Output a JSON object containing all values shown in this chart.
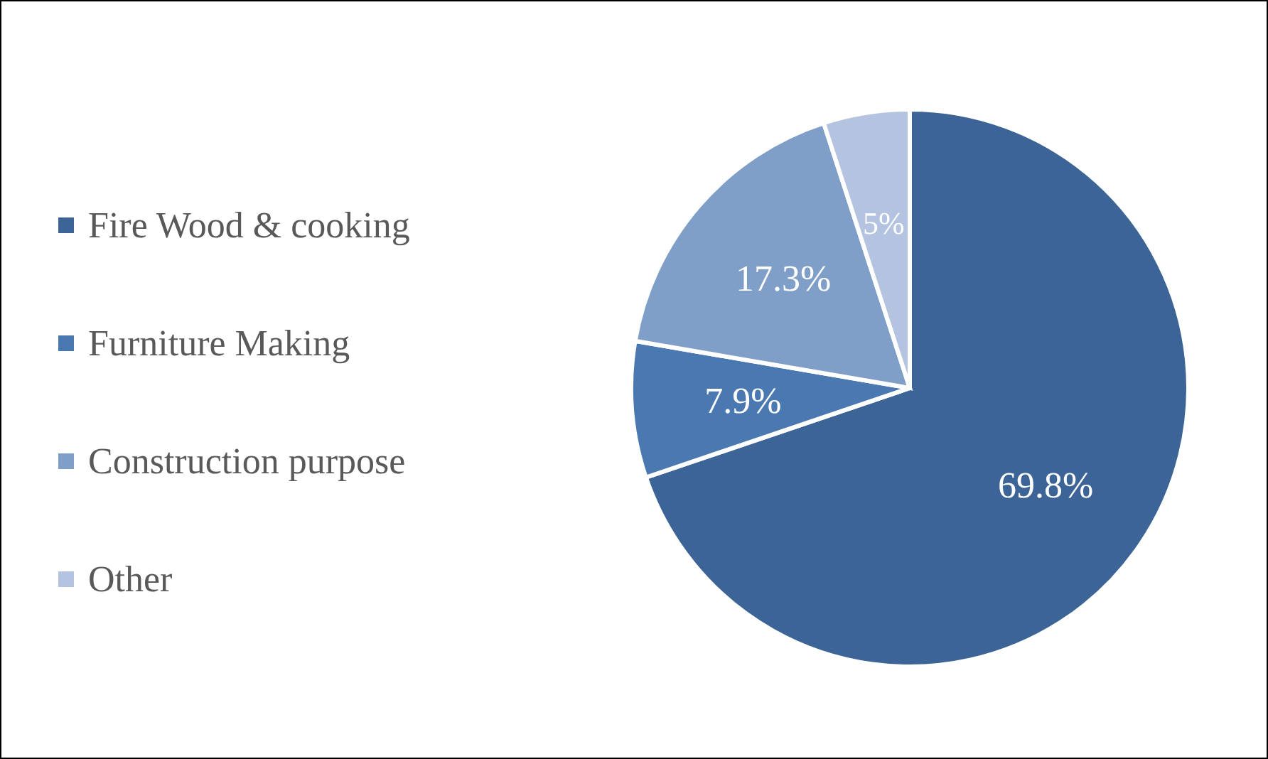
{
  "chart_data": {
    "type": "pie",
    "categories": [
      "Fire Wood & cooking",
      "Furniture Making",
      "Construction purpose",
      "Other"
    ],
    "values": [
      69.8,
      7.9,
      17.3,
      5
    ],
    "colors": [
      "#3c6496",
      "#4a78b0",
      "#7f9ec8",
      "#b4c3df"
    ],
    "value_labels": [
      "69.8%",
      "7.9%",
      "17.3%",
      "5%"
    ],
    "legend": "left"
  }
}
